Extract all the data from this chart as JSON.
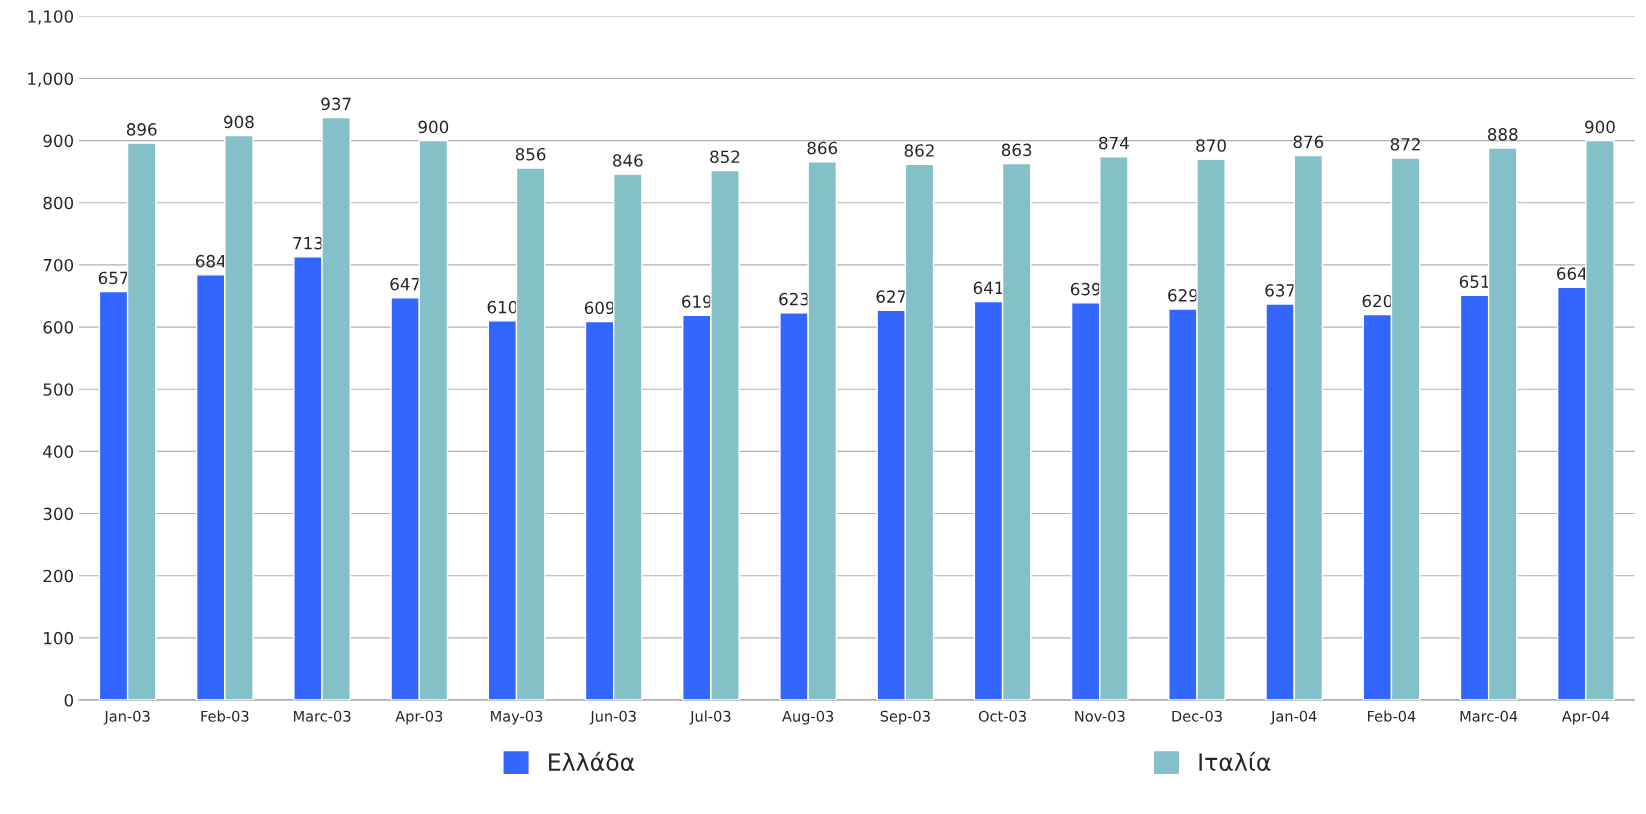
{
  "chart_data": {
    "type": "bar",
    "categories": [
      "Jan-03",
      "Feb-03",
      "Marc-03",
      "Apr-03",
      "May-03",
      "Jun-03",
      "Jul-03",
      "Aug-03",
      "Sep-03",
      "Oct-03",
      "Nov-03",
      "Dec-03",
      "Jan-04",
      "Feb-04",
      "Marc-04",
      "Apr-04"
    ],
    "series": [
      {
        "name": "Ελλάδα",
        "color": "#3366ff",
        "values": [
          657,
          684,
          713,
          647,
          610,
          609,
          619,
          623,
          627,
          641,
          639,
          629,
          637,
          620,
          651,
          664
        ]
      },
      {
        "name": "Ιταλία",
        "color": "#83c0c8",
        "values": [
          896,
          908,
          937,
          900,
          856,
          846,
          852,
          866,
          862,
          863,
          874,
          870,
          876,
          872,
          888,
          900
        ]
      }
    ],
    "ylim": [
      0,
      1100
    ],
    "yticks": [
      0,
      100,
      200,
      300,
      400,
      500,
      600,
      700,
      800,
      900,
      {
        "value": 1000,
        "label": "1,000"
      },
      {
        "value": 1100,
        "label": "1,100"
      }
    ],
    "grid": "y",
    "legend": "bottom",
    "data_labels": true
  }
}
